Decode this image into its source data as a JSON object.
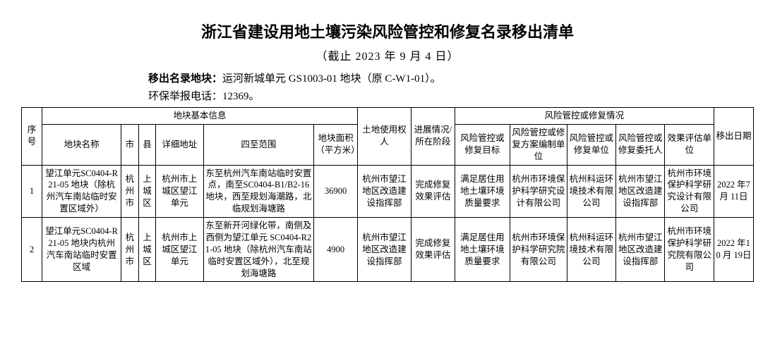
{
  "title": "浙江省建设用地土壤污染风险管控和修复名录移出清单",
  "subtitle": "（截止 2023 年 9 月 4 日）",
  "meta": {
    "removed_label": "移出名录地块：",
    "removed_value": "运河新城单元 GS1003-01 地块（原 C-W1-01）。",
    "hotline_label": "环保举报电话：",
    "hotline_value": "12369。"
  },
  "headers": {
    "seq": "序号",
    "basic_group": "地块基本信息",
    "risk_group": "风险管控或修复情况",
    "name": "地块名称",
    "city": "市",
    "county": "县",
    "addr": "详细地址",
    "scope": "四至范围",
    "area": "地块面积（平方米）",
    "user": "土地使用权人",
    "stage": "进展情况/所在阶段",
    "target": "风险管控或修复目标",
    "planner": "风险管控或修复方案编制单位",
    "unit": "风险管控或修复单位",
    "client": "风险管控或修复委托人",
    "eval": "效果评估单位",
    "date": "移出日期"
  },
  "rows": [
    {
      "seq": "1",
      "name": "望江单元SC0404-R21-05 地块（除杭州汽车南站临时安置区域外）",
      "city": "杭州市",
      "county": "上城区",
      "addr": "杭州市上城区望江单元",
      "scope": "东至杭州汽车南站临时安置点，南至SC0404-B1/B2-16 地块，西至规划海潮路，北临规划海塘路",
      "area": "36900",
      "user": "杭州市望江地区改造建设指挥部",
      "stage": "完成修复效果评估",
      "target": "满足居住用地土壤环境质量要求",
      "planner": "杭州市环境保护科学研究设计有限公司",
      "unit": "杭州科运环境技术有限公司",
      "client": "杭州市望江地区改造建设指挥部",
      "eval": "杭州市环境保护科学研究设计有限公司",
      "date": "2022 年7 月 11日"
    },
    {
      "seq": "2",
      "name": "望江单元SC0404-R21-05 地块内杭州汽车南站临时安置区域",
      "city": "杭州市",
      "county": "上城区",
      "addr": "杭州市上城区望江单元",
      "scope": "东至新开河绿化带，南侧及西侧为望江单元 SC0404-R21-05 地块（除杭州汽车南站临时安置区域外），北至规划海塘路",
      "area": "4900",
      "user": "杭州市望江地区改造建设指挥部",
      "stage": "完成修复效果评估",
      "target": "满足居住用地土壤环境质量要求",
      "planner": "杭州市环境保护科学研究院有限公司",
      "unit": "杭州科运环境技术有限公司",
      "client": "杭州市望江地区改造建设指挥部",
      "eval": "杭州市环境保护科学研究院有限公司",
      "date": "2022 年10 月 19日"
    }
  ]
}
